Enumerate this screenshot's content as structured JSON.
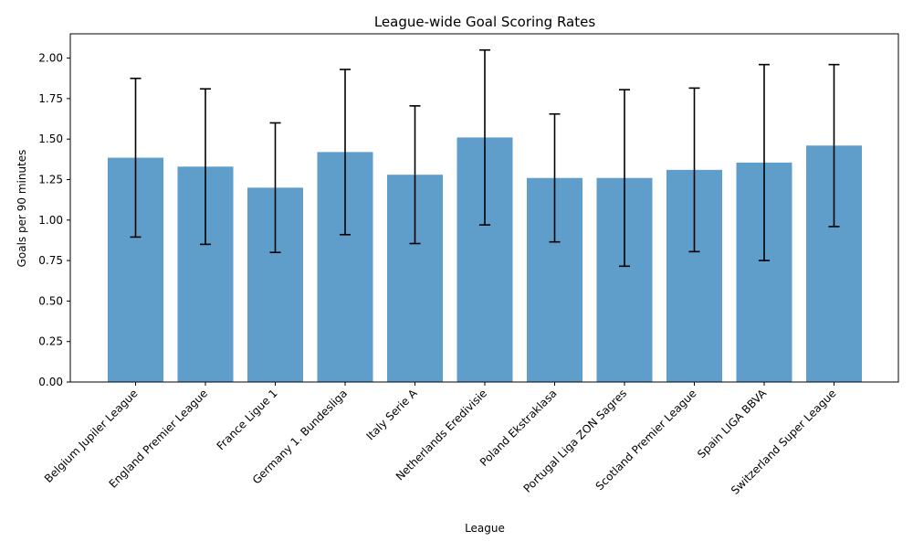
{
  "chart_data": {
    "type": "bar",
    "title": "League-wide Goal Scoring Rates",
    "xlabel": "League",
    "ylabel": "Goals per 90 minutes",
    "ylim": [
      0,
      2.15
    ],
    "yticks": [
      0.0,
      0.25,
      0.5,
      0.75,
      1.0,
      1.25,
      1.5,
      1.75,
      2.0
    ],
    "ytick_labels": [
      "0.00",
      "0.25",
      "0.50",
      "0.75",
      "1.00",
      "1.25",
      "1.50",
      "1.75",
      "2.00"
    ],
    "grid": false,
    "categories": [
      "Belgium Jupiler League",
      "England Premier League",
      "France Ligue 1",
      "Germany 1. Bundesliga",
      "Italy Serie A",
      "Netherlands Eredivisie",
      "Poland Ekstraklasa",
      "Portugal Liga ZON Sagres",
      "Scotland Premier League",
      "Spain LIGA BBVA",
      "Switzerland Super League"
    ],
    "values": [
      1.385,
      1.33,
      1.2,
      1.42,
      1.28,
      1.51,
      1.26,
      1.26,
      1.31,
      1.355,
      1.46
    ],
    "errors": [
      0.49,
      0.48,
      0.4,
      0.51,
      0.425,
      0.54,
      0.395,
      0.545,
      0.505,
      0.605,
      0.5
    ],
    "bar_color": "#5f9ecb",
    "error_color": "#000000"
  }
}
